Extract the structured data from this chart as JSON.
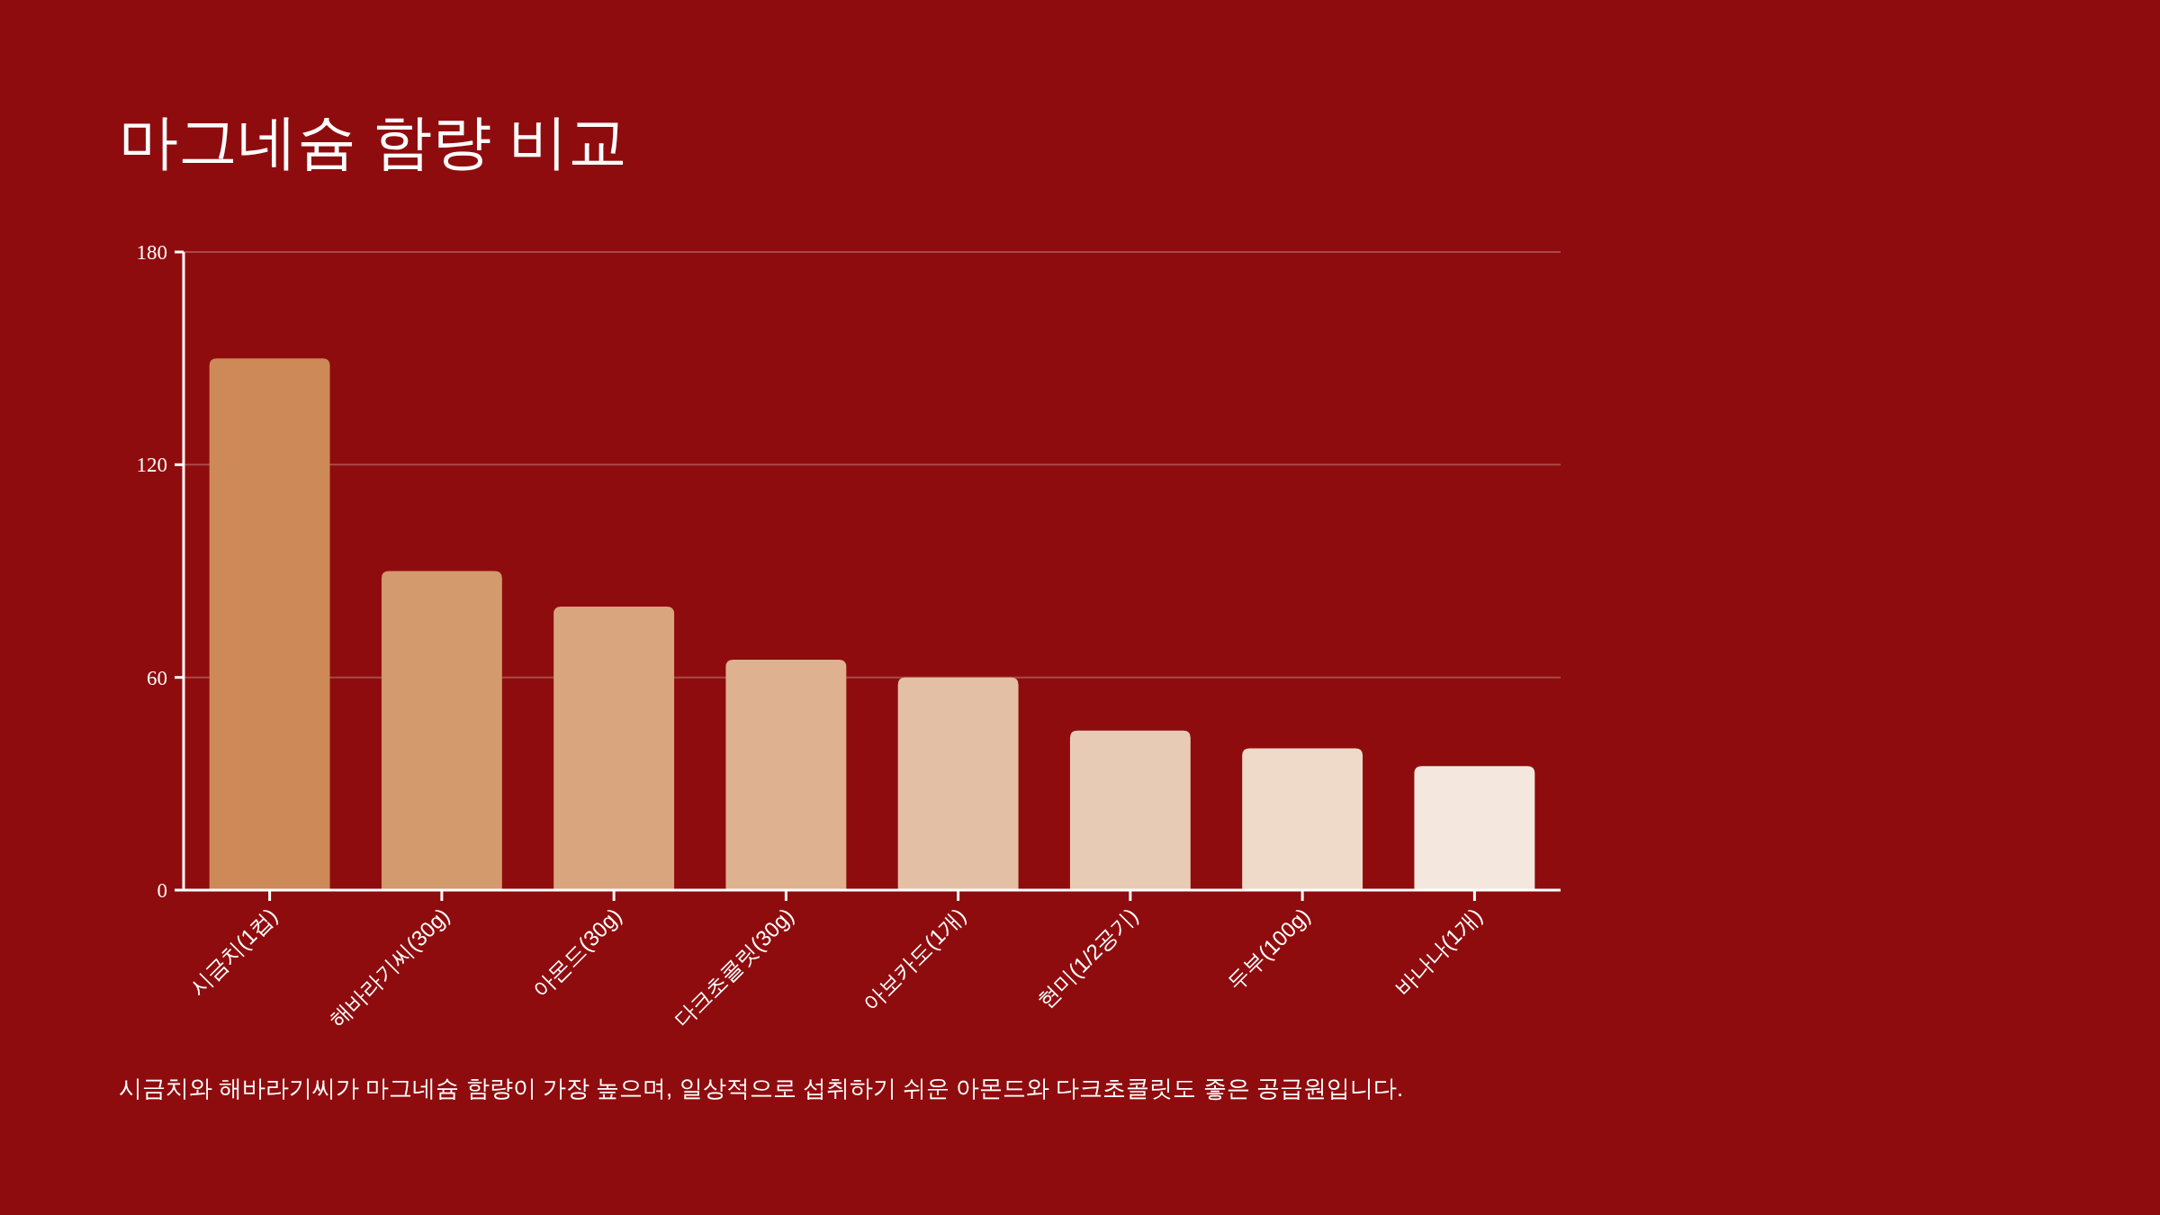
{
  "chart_data": {
    "type": "bar",
    "title": "마그네슘 함량 비교",
    "categories": [
      "시금치(1컵)",
      "해바라기씨(30g)",
      "아몬드(30g)",
      "다크초콜릿(30g)",
      "아보카도(1개)",
      "현미(1/2공기)",
      "두부(100g)",
      "바나나(1개)"
    ],
    "values": [
      150,
      90,
      80,
      65,
      60,
      45,
      40,
      35
    ],
    "colors": [
      "#cd8a58",
      "#d39a6e",
      "#d9a57f",
      "#deb191",
      "#e3c0a5",
      "#e8cbb5",
      "#efd9c9",
      "#f3e7de"
    ],
    "ylim": [
      0,
      180
    ],
    "yticks": [
      0,
      60,
      120,
      180
    ],
    "grid": "y",
    "annotations": [
      "시금치와 해바라기씨가 마그네슘 함량이 가장 높으며, 일상적으로 섭취하기 쉬운 아몬드와 다크초콜릿도 좋은 공급원입니다."
    ]
  }
}
